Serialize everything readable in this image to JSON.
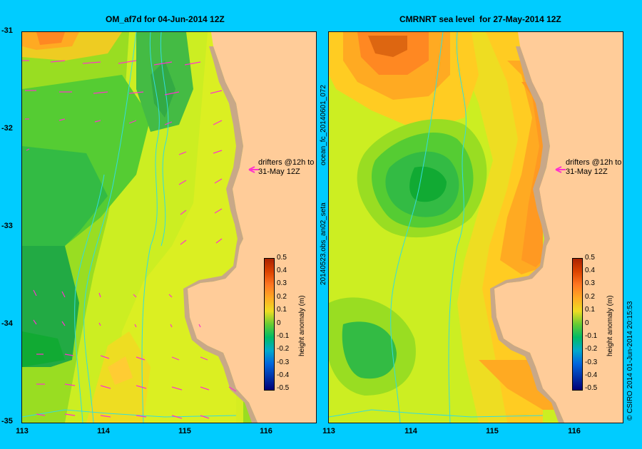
{
  "left_panel": {
    "title": "OM_af7d for 04-Jun-2014 12Z",
    "drifter_note": "drifters @12h to\n31-May 12Z",
    "colorbar_label": "height anomaly (m)"
  },
  "right_panel": {
    "title": "CMRNRT sea level  for 27-May-2014 12Z",
    "drifter_note": "drifters @12h to\n31-May 12Z",
    "colorbar_label": "height anomaly (m)",
    "side_label_upper": "ocean_fc_20140601_072",
    "side_label_lower": "20140523.obs_an02_seta"
  },
  "y_ticks": [
    "-31",
    "-32",
    "-33",
    "-34",
    "-35"
  ],
  "x_ticks": [
    "113",
    "114",
    "115",
    "116"
  ],
  "colorbar_ticks": [
    "0.5",
    "0.4",
    "0.3",
    "0.2",
    "0.1",
    "0",
    "-0.1",
    "-0.2",
    "-0.3",
    "-0.4",
    "-0.5"
  ],
  "credit": "© CSIRO 2014   01-Jun-2014 20:15:53",
  "colors": {
    "background": "#00ccff",
    "land": "#ffcc99",
    "coast": "#c8a888",
    "vector": "#ff33cc",
    "bathy_contour": "#33dddd"
  }
}
